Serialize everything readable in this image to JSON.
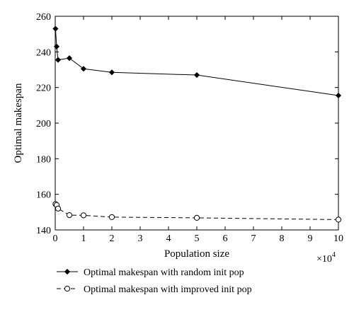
{
  "chart_data": {
    "type": "line",
    "xlabel": "Population size",
    "ylabel": "Optimal makespan",
    "x_multiplier_base": "×10",
    "x_multiplier_exp": "4",
    "xlim": [
      0,
      10
    ],
    "ylim": [
      140,
      260
    ],
    "x_ticks": [
      0,
      1,
      2,
      3,
      4,
      5,
      6,
      7,
      8,
      9,
      10
    ],
    "y_ticks": [
      140,
      160,
      180,
      200,
      220,
      240,
      260
    ],
    "grid": false,
    "legend_position": "below",
    "series": [
      {
        "name": "Optimal makespan with random init pop",
        "line_style": "solid",
        "marker": "filled-diamond",
        "color": "#000000",
        "x": [
          0.01,
          0.05,
          0.1,
          0.5,
          1,
          2,
          5,
          10
        ],
        "y": [
          253,
          243,
          235.5,
          236.5,
          230.5,
          228.5,
          227,
          215.5
        ]
      },
      {
        "name": "Optimal makespan with improved init pop",
        "line_style": "dashed",
        "marker": "open-circle",
        "color": "#000000",
        "x": [
          0.01,
          0.05,
          0.1,
          0.5,
          1,
          2,
          5,
          10
        ],
        "y": [
          154.5,
          154,
          152,
          148.3,
          148.2,
          147.2,
          146.8,
          145.8
        ]
      }
    ]
  }
}
